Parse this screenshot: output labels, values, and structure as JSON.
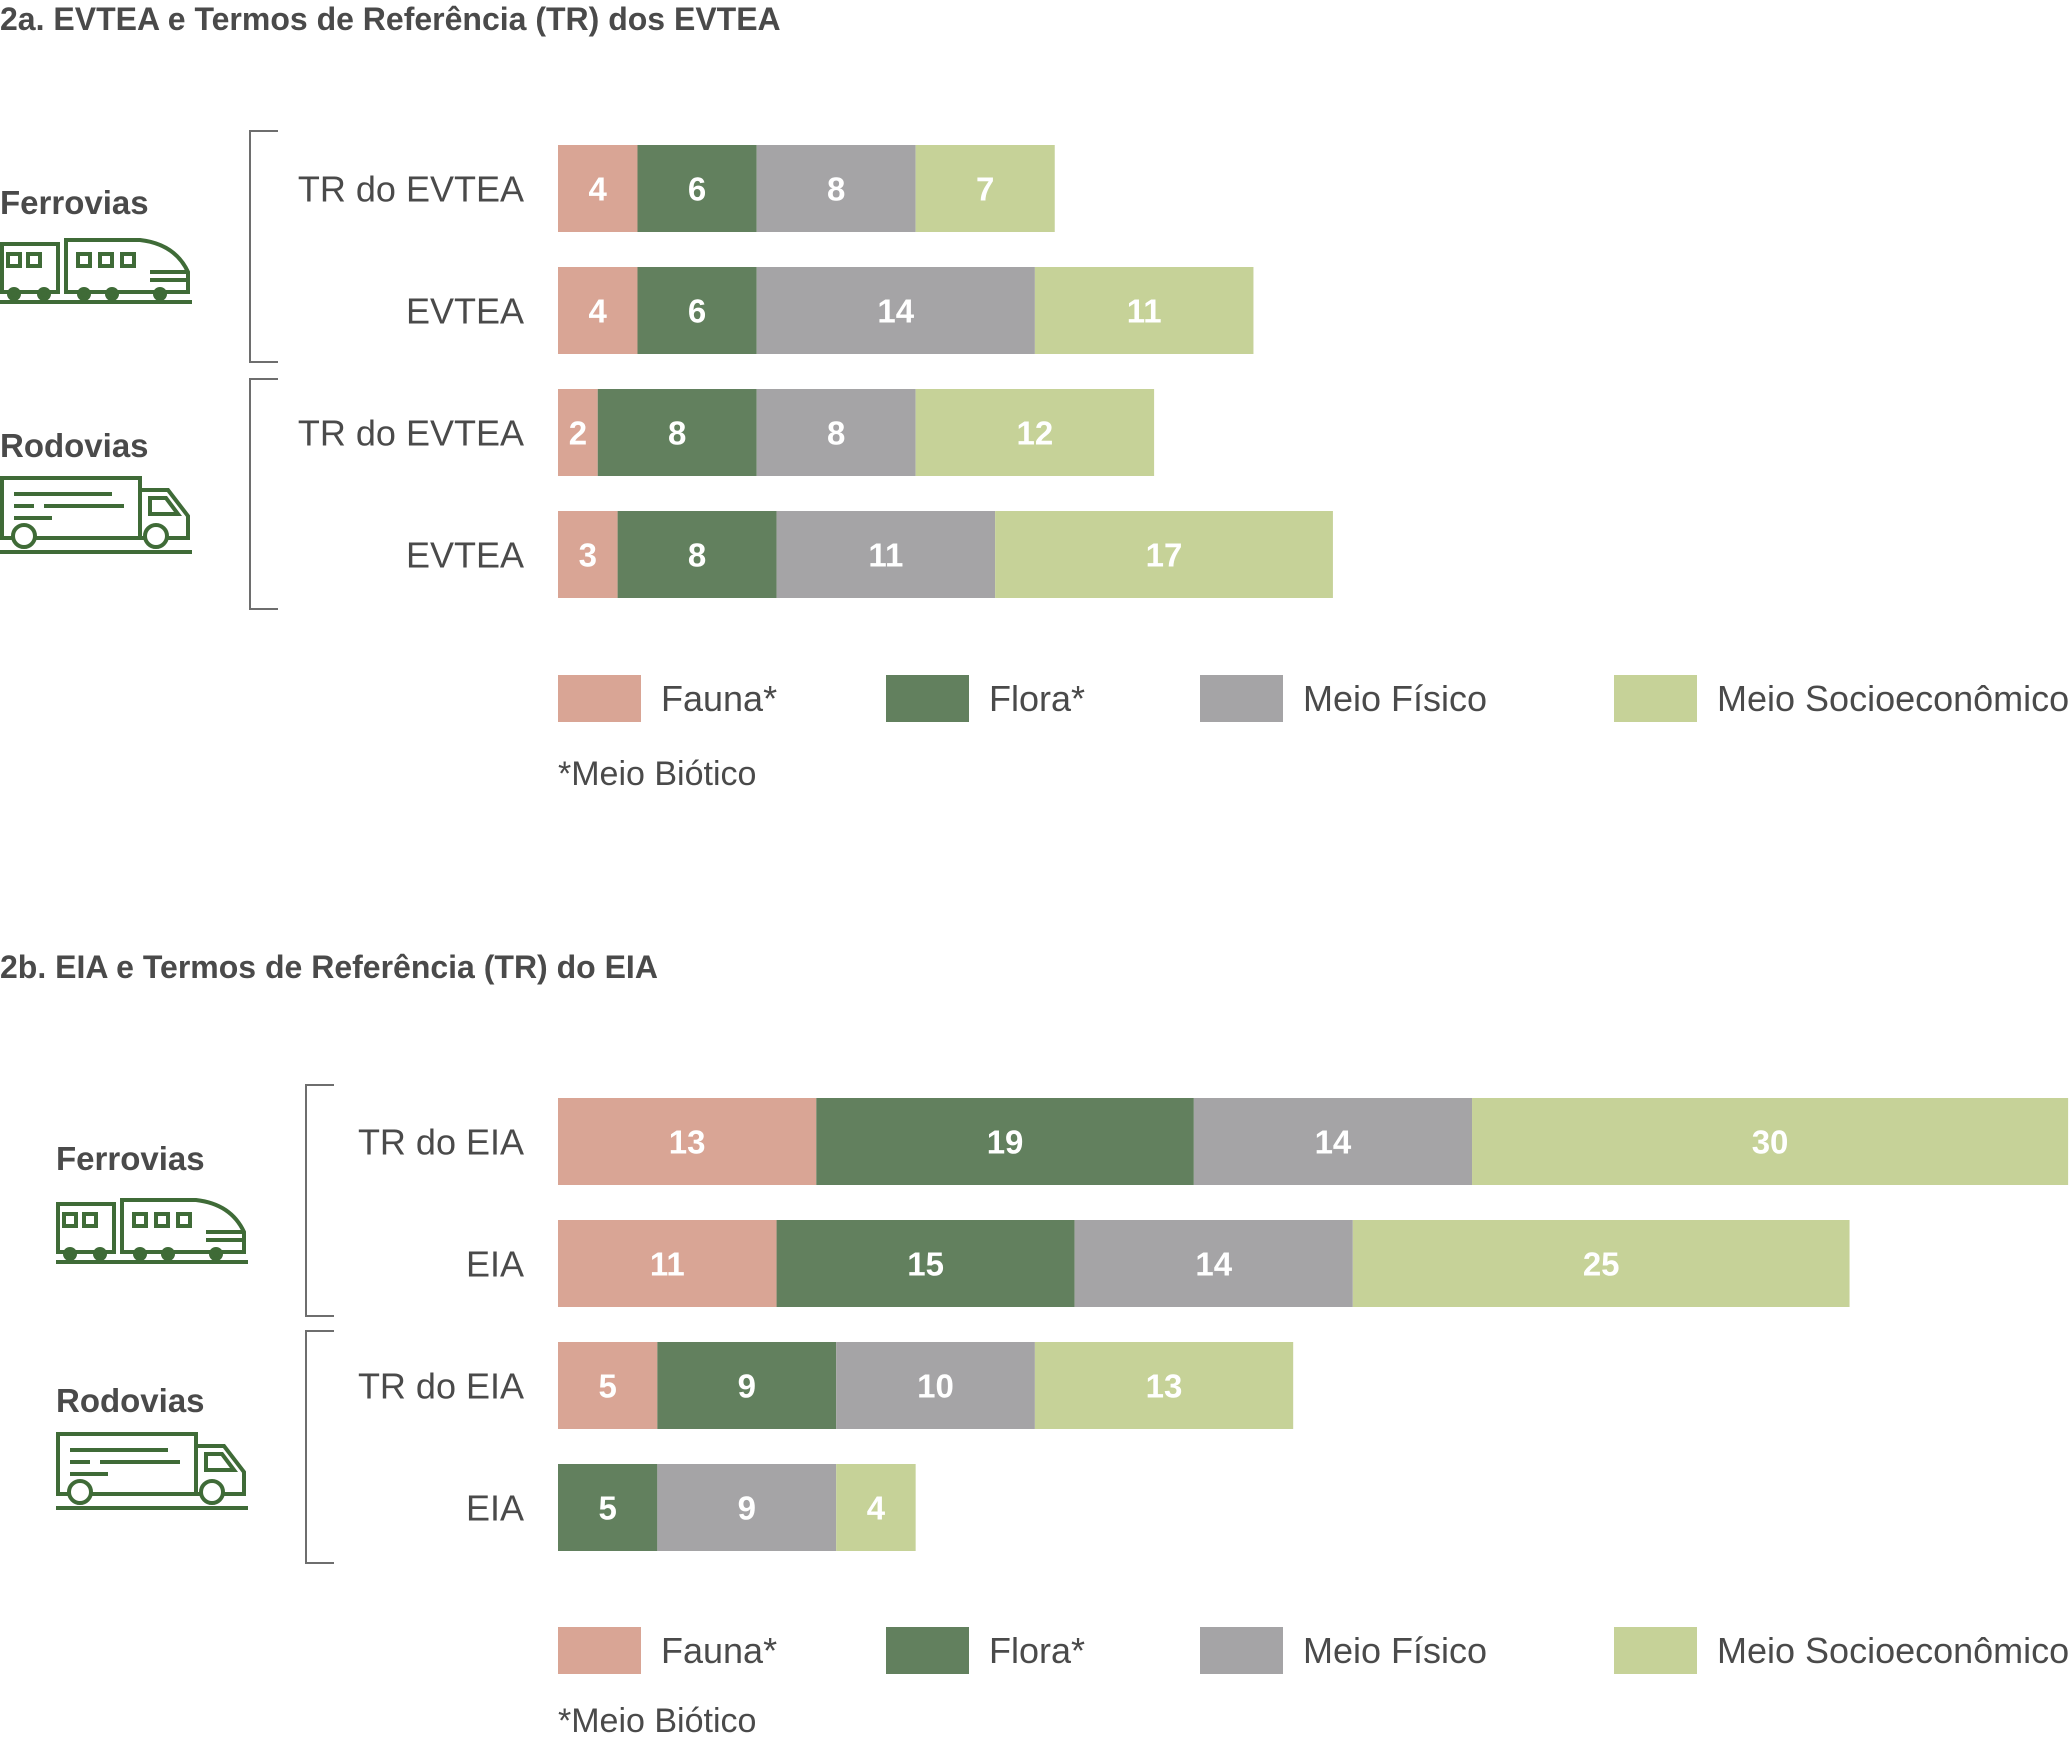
{
  "colors": {
    "Fauna*": "#d9a595",
    "Flora*": "#62805e",
    "Meio Físico": "#a5a4a6",
    "Meio Socioeconômico": "#c6d298",
    "icon": "#3f6b37",
    "text": "#4a4a4a",
    "bracket": "#6e6e6e"
  },
  "chart_data": [
    {
      "type": "bar",
      "orientation": "horizontal",
      "stacked": true,
      "title": "2a. EVTEA e Termos de Referência (TR) dos EVTEA",
      "legend": [
        "Fauna*",
        "Flora*",
        "Meio Físico",
        "Meio Socioeconômico"
      ],
      "note": "*Meio Biótico",
      "groups": [
        {
          "name": "Ferrovias",
          "icon": "train-icon",
          "rows": [
            {
              "label": "TR do EVTEA",
              "values": {
                "Fauna*": 4,
                "Flora*": 6,
                "Meio Físico": 8,
                "Meio Socioeconômico": 7
              }
            },
            {
              "label": "EVTEA",
              "values": {
                "Fauna*": 4,
                "Flora*": 6,
                "Meio Físico": 14,
                "Meio Socioeconômico": 11
              }
            }
          ]
        },
        {
          "name": "Rodovias",
          "icon": "truck-icon",
          "rows": [
            {
              "label": "TR do EVTEA",
              "values": {
                "Fauna*": 2,
                "Flora*": 8,
                "Meio Físico": 8,
                "Meio Socioeconômico": 12
              }
            },
            {
              "label": "EVTEA",
              "values": {
                "Fauna*": 3,
                "Flora*": 8,
                "Meio Físico": 11,
                "Meio Socioeconômico": 17
              }
            }
          ]
        }
      ]
    },
    {
      "type": "bar",
      "orientation": "horizontal",
      "stacked": true,
      "title": "2b. EIA e Termos de Referência (TR) do EIA",
      "legend": [
        "Fauna*",
        "Flora*",
        "Meio Físico",
        "Meio Socioeconômico"
      ],
      "note": "*Meio Biótico",
      "groups": [
        {
          "name": "Ferrovias",
          "icon": "train-icon",
          "rows": [
            {
              "label": "TR do EIA",
              "values": {
                "Fauna*": 13,
                "Flora*": 19,
                "Meio Físico": 14,
                "Meio Socioeconômico": 30
              }
            },
            {
              "label": "EIA",
              "values": {
                "Fauna*": 11,
                "Flora*": 15,
                "Meio Físico": 14,
                "Meio Socioeconômico": 25
              }
            }
          ]
        },
        {
          "name": "Rodovias",
          "icon": "truck-icon",
          "rows": [
            {
              "label": "TR do EIA",
              "values": {
                "Fauna*": 5,
                "Flora*": 9,
                "Meio Físico": 10,
                "Meio Socioeconômico": 13
              }
            },
            {
              "label": "EIA",
              "values": {
                "Fauna*": 0,
                "Flora*": 5,
                "Meio Físico": 9,
                "Meio Socioeconômico": 4
              }
            }
          ]
        }
      ]
    }
  ]
}
